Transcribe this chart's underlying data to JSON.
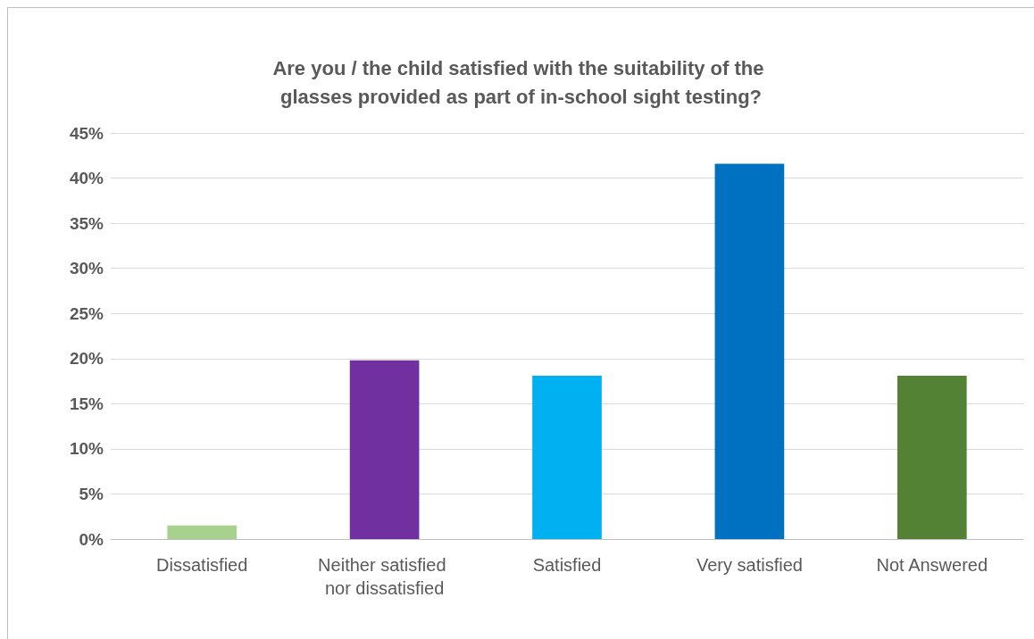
{
  "chart_data": {
    "type": "bar",
    "title": "Are you / the child satisfied with the suitability of the glasses provided as part of in-school sight testing?",
    "categories": [
      "Dissatisfied",
      "Neither satisfied nor dissatisfied",
      "Satisfied",
      "Very satisfied",
      "Not Answered"
    ],
    "values": [
      1.5,
      19.8,
      18.1,
      41.6,
      18.1
    ],
    "colors": [
      "#a9d18e",
      "#7030a0",
      "#00b0f0",
      "#0070c0",
      "#548235"
    ],
    "ylim": [
      0,
      45
    ],
    "yticks": [
      {
        "value": 0,
        "label": "0%"
      },
      {
        "value": 5,
        "label": "5%"
      },
      {
        "value": 10,
        "label": "10%"
      },
      {
        "value": 15,
        "label": "15%"
      },
      {
        "value": 20,
        "label": "20%"
      },
      {
        "value": 25,
        "label": "25%"
      },
      {
        "value": 30,
        "label": "30%"
      },
      {
        "value": 35,
        "label": "35%"
      },
      {
        "value": 40,
        "label": "40%"
      },
      {
        "value": 45,
        "label": "45%"
      }
    ],
    "grid": "y"
  }
}
